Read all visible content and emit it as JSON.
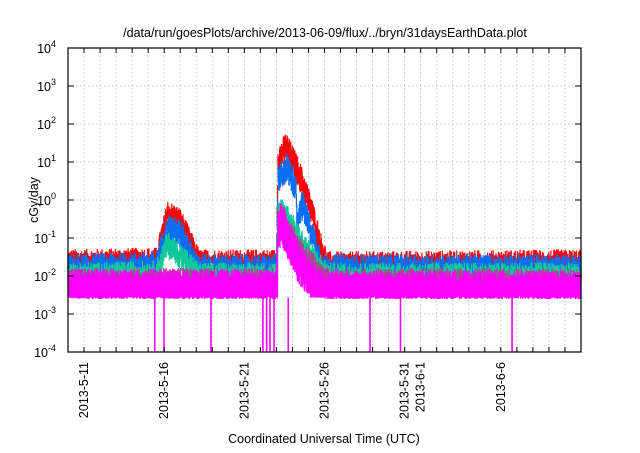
{
  "chart_data": {
    "type": "line",
    "title": "/data/run/goesPlots/archive/2013-06-09/flux/../bryn/31daysEarthData.plot",
    "xlabel": "Coordinated Universal Time (UTC)",
    "ylabel": "cGy/day",
    "x_unit": "days since 2013-5-10",
    "xlim": [
      0,
      32
    ],
    "yscale": "log",
    "ylim": [
      0.0001,
      10000
    ],
    "grid": true,
    "legend": "none",
    "x_ticks": [
      {
        "day": 1,
        "label": "2013-5-11"
      },
      {
        "day": 6,
        "label": "2013-5-16"
      },
      {
        "day": 11,
        "label": "2013-5-21"
      },
      {
        "day": 16,
        "label": "2013-5-26"
      },
      {
        "day": 21,
        "label": "2013-5-31"
      },
      {
        "day": 22,
        "label": "2013-6-1"
      },
      {
        "day": 27,
        "label": "2013-6-6"
      }
    ],
    "y_ticks": [
      {
        "exp": -4,
        "base": "10",
        "sup": "-4"
      },
      {
        "exp": -3,
        "base": "10",
        "sup": "-3"
      },
      {
        "exp": -2,
        "base": "10",
        "sup": "-2"
      },
      {
        "exp": -1,
        "base": "10",
        "sup": "-1"
      },
      {
        "exp": 0,
        "base": "10",
        "sup": "0"
      },
      {
        "exp": 1,
        "base": "10",
        "sup": "1"
      },
      {
        "exp": 2,
        "base": "10",
        "sup": "2"
      },
      {
        "exp": 3,
        "base": "10",
        "sup": "3"
      },
      {
        "exp": 4,
        "base": "10",
        "sup": "4"
      }
    ],
    "series": [
      {
        "color": "#ff0000",
        "upper": [
          [
            0,
            0.04
          ],
          [
            5.5,
            0.045
          ],
          [
            6.2,
            0.8
          ],
          [
            7,
            0.5
          ],
          [
            8.2,
            0.04
          ],
          [
            13.0,
            0.04
          ],
          [
            13.1,
            20
          ],
          [
            13.6,
            50
          ],
          [
            14.4,
            10
          ],
          [
            15.2,
            1
          ],
          [
            15.8,
            0.1
          ],
          [
            16.2,
            0.035
          ],
          [
            32,
            0.04
          ]
        ],
        "spread": 2.2
      },
      {
        "color": "#0a6ef5",
        "upper": [
          [
            0,
            0.03
          ],
          [
            5.5,
            0.035
          ],
          [
            6.2,
            0.35
          ],
          [
            7,
            0.25
          ],
          [
            8.2,
            0.03
          ],
          [
            13.0,
            0.03
          ],
          [
            13.1,
            6
          ],
          [
            13.6,
            15
          ],
          [
            14.2,
            5
          ],
          [
            14.3,
            0.6
          ],
          [
            14.6,
            1.5
          ],
          [
            15.3,
            0.2
          ],
          [
            15.9,
            0.03
          ],
          [
            32,
            0.03
          ]
        ],
        "spread": 2.2
      },
      {
        "color": "#10c89a",
        "upper": [
          [
            0,
            0.018
          ],
          [
            5.5,
            0.02
          ],
          [
            6.2,
            0.12
          ],
          [
            7,
            0.06
          ],
          [
            8.2,
            0.018
          ],
          [
            13.0,
            0.018
          ],
          [
            13.1,
            0.8
          ],
          [
            13.4,
            1.0
          ],
          [
            14.5,
            0.15
          ],
          [
            15.5,
            0.04
          ],
          [
            16.2,
            0.018
          ],
          [
            32,
            0.018
          ]
        ],
        "spread": 1.8
      },
      {
        "color": "#a0508c",
        "upper": [
          [
            0,
            0.013
          ],
          [
            13.0,
            0.013
          ],
          [
            13.1,
            0.5
          ],
          [
            13.4,
            0.6
          ],
          [
            14.5,
            0.08
          ],
          [
            15.5,
            0.025
          ],
          [
            16.2,
            0.013
          ],
          [
            32,
            0.013
          ]
        ],
        "spread": 1.6
      },
      {
        "color": "#ff00ff",
        "upper": [
          [
            0,
            0.012
          ],
          [
            13.0,
            0.012
          ],
          [
            13.1,
            0.4
          ],
          [
            13.3,
            0.7
          ],
          [
            14.5,
            0.05
          ],
          [
            15.5,
            0.015
          ],
          [
            16.2,
            0.011
          ],
          [
            32,
            0.011
          ]
        ],
        "floor": 0.0027,
        "dropouts": [
          5.41,
          5.99,
          8.92,
          12.16,
          12.39,
          12.6,
          12.85,
          13.74,
          18.84,
          20.74,
          27.7
        ]
      }
    ]
  }
}
